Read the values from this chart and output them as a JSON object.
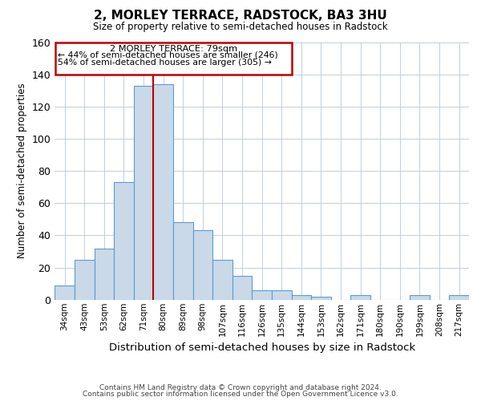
{
  "title": "2, MORLEY TERRACE, RADSTOCK, BA3 3HU",
  "subtitle": "Size of property relative to semi-detached houses in Radstock",
  "xlabel": "Distribution of semi-detached houses by size in Radstock",
  "ylabel": "Number of semi-detached properties",
  "bar_labels": [
    "34sqm",
    "43sqm",
    "53sqm",
    "62sqm",
    "71sqm",
    "80sqm",
    "89sqm",
    "98sqm",
    "107sqm",
    "116sqm",
    "126sqm",
    "135sqm",
    "144sqm",
    "153sqm",
    "162sqm",
    "171sqm",
    "180sqm",
    "190sqm",
    "199sqm",
    "208sqm",
    "217sqm"
  ],
  "bar_values": [
    9,
    25,
    32,
    73,
    133,
    134,
    48,
    43,
    25,
    15,
    6,
    6,
    3,
    2,
    0,
    3,
    0,
    0,
    3,
    0,
    3
  ],
  "bar_color": "#c9d9e8",
  "bar_edge_color": "#5b9bd5",
  "property_line_x": 4.5,
  "property_line_color": "#c00000",
  "annotation_title": "2 MORLEY TERRACE: 79sqm",
  "annotation_line1": "← 44% of semi-detached houses are smaller (246)",
  "annotation_line2": "54% of semi-detached houses are larger (305) →",
  "annotation_box_color": "#c00000",
  "ylim": [
    0,
    160
  ],
  "yticks": [
    0,
    20,
    40,
    60,
    80,
    100,
    120,
    140,
    160
  ],
  "footer1": "Contains HM Land Registry data © Crown copyright and database right 2024.",
  "footer2": "Contains public sector information licensed under the Open Government Licence v3.0."
}
